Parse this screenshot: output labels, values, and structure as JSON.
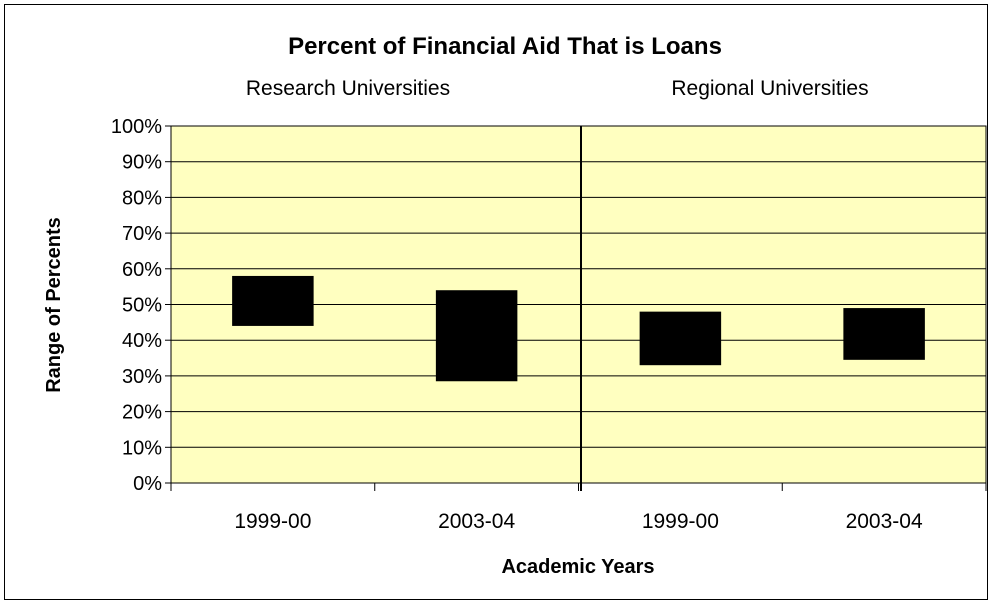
{
  "chart_data": {
    "type": "bar",
    "subtype": "floating-range",
    "title": "Percent of Financial Aid That is Loans",
    "groups": [
      "Research Universities",
      "Regional Universities"
    ],
    "categories": [
      "1999-00",
      "2003-04",
      "1999-00",
      "2003-04"
    ],
    "ranges": [
      {
        "group": "Research Universities",
        "category": "1999-00",
        "low": 44,
        "high": 58
      },
      {
        "group": "Research Universities",
        "category": "2003-04",
        "low": 28.5,
        "high": 54
      },
      {
        "group": "Regional Universities",
        "category": "1999-00",
        "low": 33,
        "high": 48
      },
      {
        "group": "Regional Universities",
        "category": "2003-04",
        "low": 34.5,
        "high": 49
      }
    ],
    "xlabel": "Academic Years",
    "ylabel": "Range of Percents",
    "ylim": [
      0,
      100
    ],
    "yticks": [
      "0%",
      "10%",
      "20%",
      "30%",
      "40%",
      "50%",
      "60%",
      "70%",
      "80%",
      "90%",
      "100%"
    ],
    "grid": true,
    "colors": {
      "plot_background": "#FFFFC0",
      "bar": "#000000",
      "gridline": "#000000"
    }
  }
}
